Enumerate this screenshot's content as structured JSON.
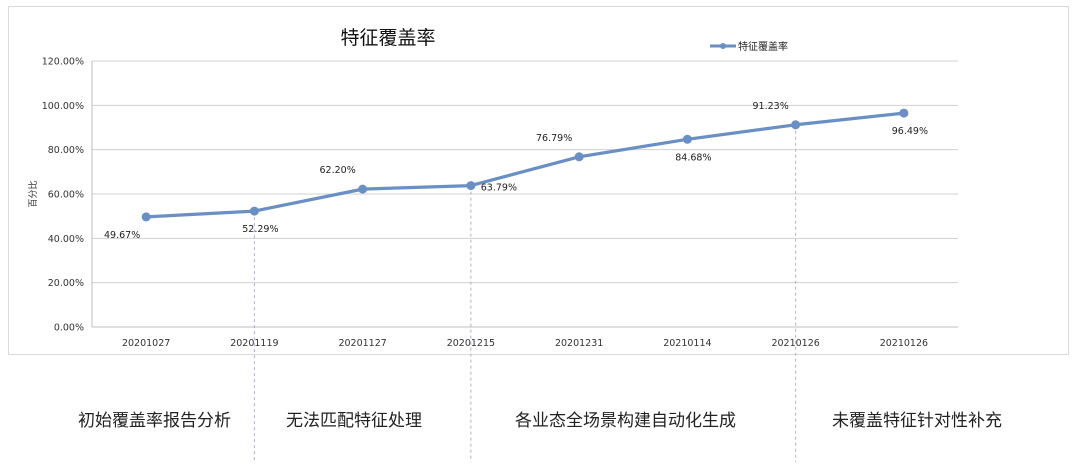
{
  "chart_data": {
    "type": "line",
    "title": "特征覆盖率",
    "ylabel": "百分比",
    "xlabel": "",
    "ylim": [
      0,
      120
    ],
    "yticks": [
      "0.00%",
      "20.00%",
      "40.00%",
      "60.00%",
      "80.00%",
      "100.00%",
      "120.00%"
    ],
    "grid": true,
    "legend_position": "top-right",
    "categories": [
      "20201027",
      "20201119",
      "20201127",
      "20201215",
      "20201231",
      "20210114",
      "20210126",
      "20210126"
    ],
    "series": [
      {
        "name": "特征覆盖率",
        "values": [
          49.67,
          52.29,
          62.2,
          63.79,
          76.79,
          84.68,
          91.23,
          96.49
        ],
        "labels": [
          "49.67%",
          "52.29%",
          "62.20%",
          "63.79%",
          "76.79%",
          "84.68%",
          "91.23%",
          "96.49%"
        ],
        "color": "#6a8fc4"
      }
    ]
  },
  "phases": [
    "初始覆盖率报告分析",
    "无法匹配特征处理",
    "各业态全场景构建自动化生成",
    "未覆盖特征针对性补充"
  ]
}
